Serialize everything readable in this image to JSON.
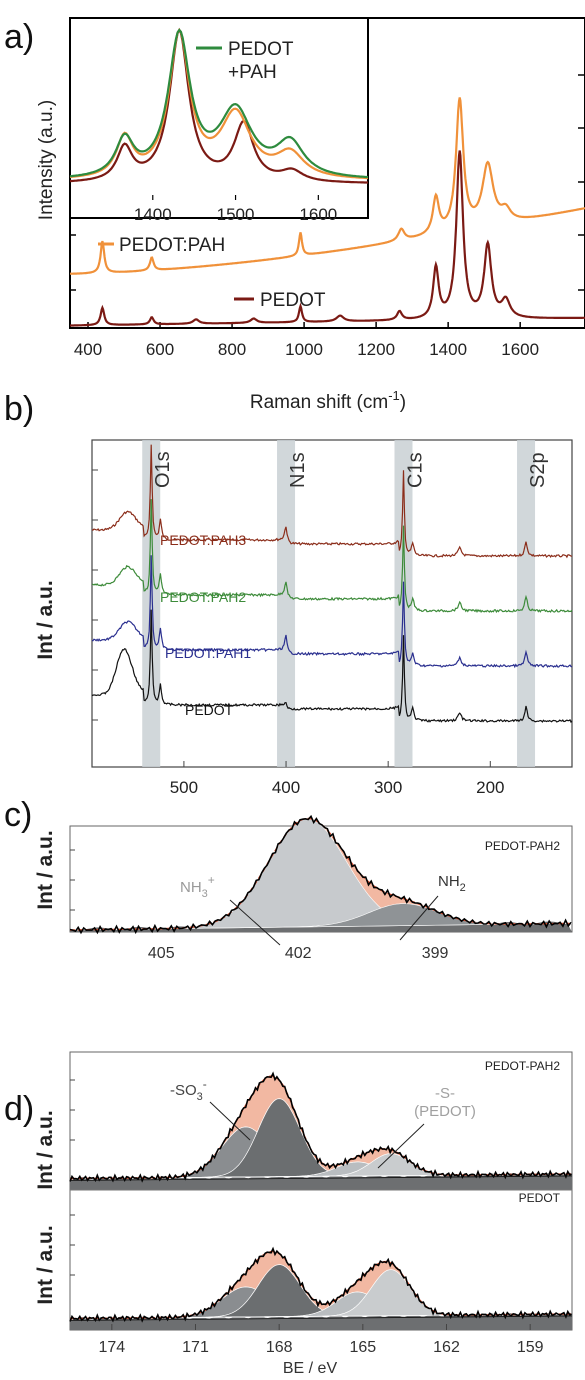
{
  "panel_labels": {
    "a": "a)",
    "b": "b)",
    "c": "c)",
    "d": "d)"
  },
  "chart_data": [
    {
      "panel": "a",
      "type": "line",
      "xlabel": "Raman shift (cm",
      "xlabel_sup": "-1",
      "xlabel_end": ")",
      "ylabel": "Intensity (a.u.)",
      "xlim": [
        350,
        1780
      ],
      "xticks": [
        "400",
        "600",
        "800",
        "1000",
        "1200",
        "1400",
        "1600"
      ],
      "colors": {
        "pedot": "#7b1a14",
        "pedot_pah": "#f0913a",
        "inset_green": "#2e8b3e"
      },
      "series": [
        {
          "name": "PEDOT",
          "x": [
            350,
            440,
            500,
            580,
            700,
            800,
            900,
            990,
            1100,
            1200,
            1265,
            1300,
            1366,
            1400,
            1432,
            1470,
            1500,
            1510,
            1560,
            1780
          ],
          "y": [
            0.03,
            0.1,
            0.04,
            0.06,
            0.05,
            0.05,
            0.06,
            0.12,
            0.08,
            0.1,
            0.18,
            0.14,
            0.4,
            0.3,
            1.0,
            0.25,
            0.5,
            0.55,
            0.2,
            0.1
          ]
        },
        {
          "name": "PEDOT:PAH",
          "x": [
            350,
            440,
            500,
            580,
            700,
            800,
            900,
            990,
            1100,
            1200,
            1270,
            1300,
            1366,
            1400,
            1432,
            1470,
            1510,
            1560,
            1780
          ],
          "y": [
            0.2,
            0.38,
            0.25,
            0.28,
            0.3,
            0.33,
            0.38,
            0.5,
            0.46,
            0.55,
            0.64,
            0.62,
            0.85,
            0.8,
            1.45,
            0.85,
            0.95,
            0.7,
            0.55
          ]
        }
      ],
      "inset": {
        "xticks": [
          "1400",
          "1500",
          "1600"
        ],
        "xlim": [
          1300,
          1660
        ],
        "series": [
          {
            "name": "PEDOT",
            "x": [
              1300,
              1340,
              1366,
              1390,
              1410,
              1432,
              1460,
              1480,
              1500,
              1510,
              1530,
              1560,
              1580,
              1620,
              1660
            ],
            "y": [
              0.1,
              0.2,
              0.34,
              0.28,
              0.55,
              1.0,
              0.4,
              0.28,
              0.45,
              0.48,
              0.26,
              0.12,
              0.14,
              0.08,
              0.06
            ]
          },
          {
            "name": "PEDOT:PAH",
            "x": [
              1300,
              1340,
              1366,
              1390,
              1410,
              1432,
              1460,
              1480,
              1500,
              1510,
              1530,
              1560,
              1580,
              1620,
              1660
            ],
            "y": [
              0.12,
              0.25,
              0.4,
              0.34,
              0.6,
              1.0,
              0.48,
              0.42,
              0.5,
              0.52,
              0.4,
              0.32,
              0.26,
              0.14,
              0.1
            ]
          },
          {
            "name": "PEDOT +PAH",
            "x": [
              1300,
              1340,
              1366,
              1390,
              1410,
              1432,
              1460,
              1480,
              1500,
              1510,
              1530,
              1560,
              1580,
              1620,
              1660
            ],
            "y": [
              0.14,
              0.24,
              0.38,
              0.34,
              0.62,
              1.0,
              0.55,
              0.45,
              0.52,
              0.53,
              0.45,
              0.38,
              0.3,
              0.16,
              0.1
            ]
          }
        ],
        "legend_line1": "PEDOT",
        "legend_line2": "+PAH"
      }
    },
    {
      "panel": "b",
      "type": "line",
      "ylabel": "Int / a.u.",
      "xlim": [
        590,
        120
      ],
      "xticks": [
        "500",
        "400",
        "300",
        "200"
      ],
      "bands": [
        {
          "label": "O1s",
          "center": 532
        },
        {
          "label": "N1s",
          "center": 400
        },
        {
          "label": "C1s",
          "center": 285
        },
        {
          "label": "S2p",
          "center": 165
        }
      ],
      "series": [
        {
          "name": "PEDOT:PAH3",
          "color": "#8b2d1a"
        },
        {
          "name": "PEDOT:PAH2",
          "color": "#3d8b3a"
        },
        {
          "name": "PEDOT:PAH1",
          "color": "#2a2f8f"
        },
        {
          "name": "PEDOT",
          "color": "#111111"
        }
      ]
    },
    {
      "panel": "c",
      "type": "area",
      "ylabel": "Int / a.u.",
      "title": "PEDOT-PAH2",
      "xlim": [
        407,
        396
      ],
      "xticks": [
        "405",
        "402",
        "399"
      ],
      "peaks": [
        {
          "label": "NH",
          "sub": "3",
          "sup": "+",
          "center": 401.8,
          "color": "#c7cacd"
        },
        {
          "label": "NH",
          "sub": "2",
          "center": 399.7,
          "color": "#8f9396"
        }
      ]
    },
    {
      "panel": "d",
      "type": "area",
      "ylabel": "Int / a.u.",
      "xlabel": "BE / eV",
      "xlim": [
        175.5,
        157.5
      ],
      "xticks": [
        "174",
        "171",
        "168",
        "165",
        "162",
        "159"
      ],
      "subplots": [
        {
          "title": "PEDOT-PAH2",
          "label_so3": "-SO",
          "so3_sub": "3",
          "so3_sup": "-",
          "label_s": "-S-",
          "label_s2": "(PEDOT)"
        },
        {
          "title": "PEDOT"
        }
      ]
    }
  ]
}
